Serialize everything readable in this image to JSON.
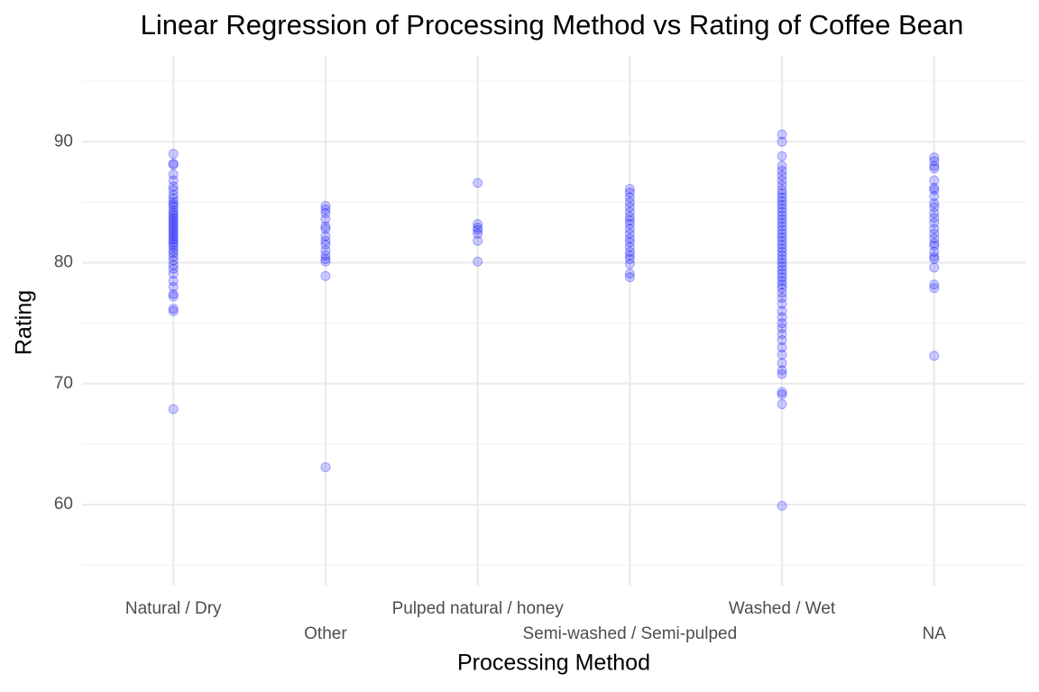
{
  "chart_data": {
    "type": "strip",
    "title": "Linear Regression of Processing Method vs Rating of Coffee Bean",
    "xlabel": "Processing Method",
    "ylabel": "Rating",
    "categories": [
      "Natural / Dry",
      "Other",
      "Pulped natural / honey",
      "Semi-washed / Semi-pulped",
      "Washed / Wet",
      "NA"
    ],
    "values": [
      [
        89.0,
        88.2,
        88.1,
        87.3,
        86.8,
        86.3,
        86.0,
        85.6,
        85.3,
        85.0,
        84.8,
        84.6,
        84.3,
        84.1,
        83.9,
        83.7,
        83.5,
        83.3,
        83.1,
        82.9,
        82.7,
        82.5,
        82.3,
        82.1,
        81.9,
        81.7,
        81.5,
        81.3,
        81.0,
        80.8,
        80.5,
        80.2,
        79.8,
        79.5,
        79.1,
        78.5,
        78.0,
        77.4,
        77.2,
        76.2,
        76.0,
        67.9
      ],
      [
        84.7,
        84.4,
        84.1,
        83.6,
        83.0,
        82.8,
        82.2,
        81.8,
        81.5,
        81.0,
        80.6,
        80.3,
        80.1,
        78.9,
        63.1
      ],
      [
        86.6,
        83.2,
        82.9,
        82.7,
        82.4,
        81.8,
        80.1
      ],
      [
        86.1,
        85.8,
        85.4,
        85.0,
        84.6,
        84.2,
        83.8,
        83.5,
        83.2,
        82.8,
        82.4,
        82.0,
        81.7,
        81.3,
        80.9,
        80.6,
        80.3,
        79.9,
        79.1,
        78.8
      ],
      [
        90.6,
        90.0,
        88.8,
        88.0,
        87.6,
        87.2,
        86.8,
        86.4,
        86.0,
        85.7,
        85.4,
        85.1,
        84.8,
        84.5,
        84.2,
        83.9,
        83.6,
        83.3,
        83.0,
        82.7,
        82.4,
        82.1,
        81.8,
        81.5,
        81.2,
        80.9,
        80.6,
        80.3,
        80.0,
        79.7,
        79.4,
        79.1,
        78.8,
        78.5,
        78.2,
        77.9,
        77.5,
        77.1,
        76.6,
        76.0,
        75.5,
        75.0,
        74.6,
        74.1,
        73.6,
        73.0,
        72.4,
        71.7,
        71.1,
        70.8,
        69.3,
        69.1,
        68.3,
        59.9
      ],
      [
        88.7,
        88.4,
        88.0,
        87.8,
        86.8,
        86.2,
        86.0,
        85.5,
        84.9,
        84.6,
        84.1,
        83.7,
        83.3,
        82.8,
        82.4,
        82.0,
        81.6,
        81.4,
        80.9,
        80.5,
        80.3,
        79.6,
        78.2,
        77.9,
        72.3
      ]
    ],
    "color": "#0000ff",
    "alpha": 0.2,
    "ylim": [
      53.3,
      97.1
    ],
    "yticks": [
      60,
      70,
      80,
      90
    ],
    "minor_yticks": [
      55,
      65,
      75,
      85,
      95
    ],
    "grid": true
  }
}
